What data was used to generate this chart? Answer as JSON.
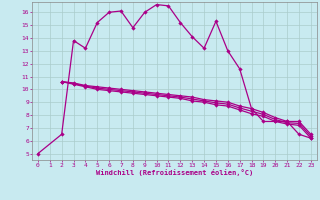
{
  "xlabel": "Windchill (Refroidissement éolien,°C)",
  "bg_color": "#c8eaf0",
  "line_color": "#aa0088",
  "grid_color": "#aacccc",
  "xlim": [
    -0.5,
    23.5
  ],
  "ylim": [
    4.5,
    16.8
  ],
  "xticks": [
    0,
    1,
    2,
    3,
    4,
    5,
    6,
    7,
    8,
    9,
    10,
    11,
    12,
    13,
    14,
    15,
    16,
    17,
    18,
    19,
    20,
    21,
    22,
    23
  ],
  "yticks": [
    5,
    6,
    7,
    8,
    9,
    10,
    11,
    12,
    13,
    14,
    15,
    16
  ],
  "line1_x": [
    0,
    2,
    3,
    4,
    5,
    6,
    7,
    8,
    9,
    10,
    11,
    12,
    13,
    14,
    15,
    16,
    17,
    18,
    19,
    20,
    21,
    22,
    23
  ],
  "line1_y": [
    5,
    6.5,
    13.8,
    13.2,
    15.2,
    16.0,
    16.1,
    14.8,
    16.0,
    16.6,
    16.5,
    15.2,
    14.1,
    13.2,
    15.3,
    13.0,
    11.6,
    8.5,
    7.5,
    7.5,
    7.5,
    6.5,
    6.2
  ],
  "line2_x": [
    2,
    3,
    4,
    5,
    6,
    7,
    8,
    9,
    10,
    11,
    12,
    13,
    14,
    15,
    16,
    17,
    18,
    19,
    20,
    21,
    22,
    23
  ],
  "line2_y": [
    10.6,
    10.5,
    10.3,
    10.2,
    10.1,
    10.0,
    9.9,
    9.8,
    9.7,
    9.6,
    9.5,
    9.4,
    9.2,
    9.1,
    9.0,
    8.7,
    8.5,
    8.2,
    7.8,
    7.5,
    7.5,
    6.5
  ],
  "line3_x": [
    2,
    3,
    4,
    5,
    6,
    7,
    8,
    9,
    10,
    11,
    12,
    13,
    14,
    15,
    16,
    17,
    18,
    19,
    20,
    21,
    22,
    23
  ],
  "line3_y": [
    10.6,
    10.4,
    10.2,
    10.0,
    9.9,
    9.8,
    9.7,
    9.6,
    9.5,
    9.4,
    9.3,
    9.1,
    9.0,
    8.8,
    8.7,
    8.4,
    8.1,
    7.9,
    7.5,
    7.3,
    7.2,
    6.2
  ],
  "line4_x": [
    2,
    3,
    4,
    5,
    6,
    7,
    8,
    9,
    10,
    11,
    12,
    13,
    14,
    15,
    16,
    17,
    18,
    19,
    20,
    21,
    22,
    23
  ],
  "line4_y": [
    10.6,
    10.45,
    10.25,
    10.1,
    10.0,
    9.9,
    9.8,
    9.7,
    9.6,
    9.5,
    9.4,
    9.25,
    9.1,
    8.95,
    8.85,
    8.55,
    8.3,
    8.05,
    7.65,
    7.4,
    7.35,
    6.35
  ]
}
